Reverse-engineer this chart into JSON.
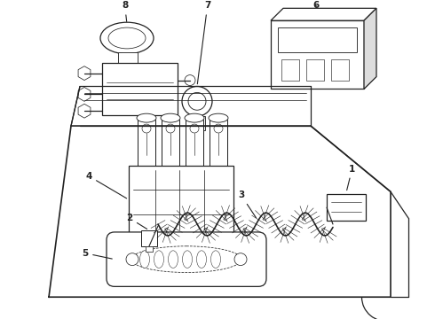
{
  "bg_color": "#ffffff",
  "lc": "#222222",
  "lw": 0.9,
  "figsize": [
    4.9,
    3.6
  ],
  "dpi": 100
}
